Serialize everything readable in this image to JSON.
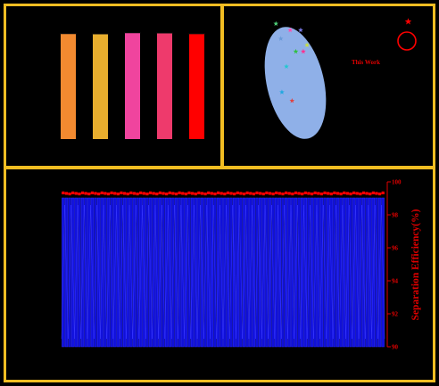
{
  "chart_data": [
    {
      "type": "bar",
      "categories": [
        "",
        "",
        "",
        "",
        ""
      ],
      "values": [
        98.5,
        98.2,
        99.3,
        99.1,
        98.4
      ],
      "ylim": [
        0,
        100
      ],
      "colors": [
        "#f28a30",
        "#e8ae2e",
        "#f0449e",
        "#ee3a6c",
        "#ff0000"
      ],
      "xlabel": "",
      "ylabel": "",
      "title": ""
    },
    {
      "type": "scatter",
      "marker": "star",
      "annotation": "This Work",
      "region_color": "#8fb0e8",
      "points": [
        {
          "x": 0.72,
          "y": 0.96,
          "color": "#4ecf78"
        },
        {
          "x": 1.1,
          "y": 0.93,
          "color": "#ff4fae"
        },
        {
          "x": 1.38,
          "y": 0.93,
          "color": "#7a7ae8"
        },
        {
          "x": 0.85,
          "y": 0.89,
          "color": "#6a9ad8"
        },
        {
          "x": 1.55,
          "y": 0.86,
          "color": "#c8e040"
        },
        {
          "x": 1.25,
          "y": 0.83,
          "color": "#30c040"
        },
        {
          "x": 1.45,
          "y": 0.83,
          "color": "#ff3090"
        },
        {
          "x": 1.0,
          "y": 0.76,
          "color": "#20c8d0"
        },
        {
          "x": 0.88,
          "y": 0.64,
          "color": "#20a8e0"
        },
        {
          "x": 1.15,
          "y": 0.6,
          "color": "#e04040"
        },
        {
          "x": 4.25,
          "y": 0.97,
          "color": "#ff0000",
          "highlight": true
        }
      ],
      "xlabel": "",
      "ylabel": "",
      "title": ""
    },
    {
      "type": "bar",
      "cycles": 100,
      "series": [
        {
          "values_constant": 99.3,
          "color": "#ff0000",
          "axis": "right"
        }
      ],
      "bar_color": "#1010d8",
      "ylabel_right": "Separation Efficiency(%)",
      "yticks_right": [
        "90",
        "92",
        "94",
        "96",
        "98",
        "100"
      ],
      "ylim_right": [
        90,
        100
      ],
      "xlabel": "",
      "title": ""
    }
  ]
}
